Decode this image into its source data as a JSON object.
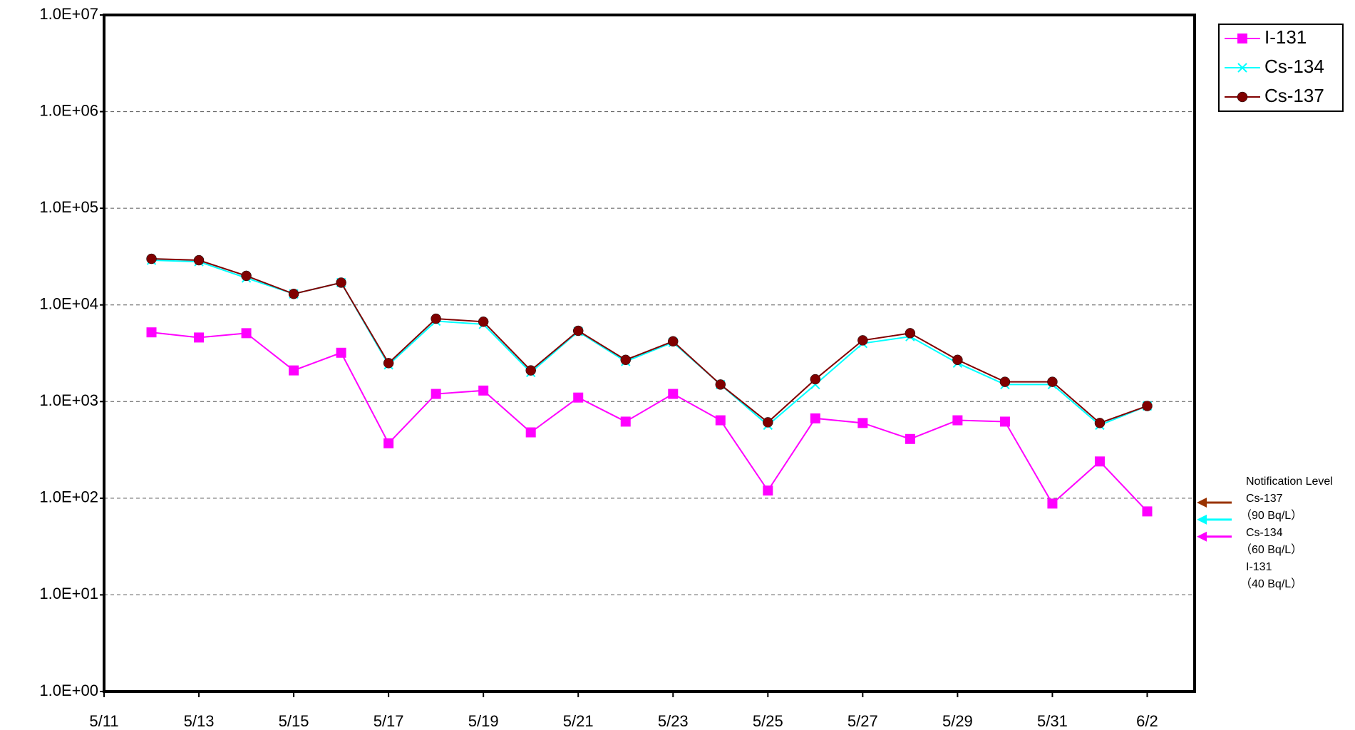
{
  "chart_data": {
    "type": "line",
    "x": [
      "5/12",
      "5/13",
      "5/14",
      "5/15",
      "5/16",
      "5/17",
      "5/18",
      "5/19",
      "5/20",
      "5/21",
      "5/22",
      "5/23",
      "5/24",
      "5/25",
      "5/26",
      "5/27",
      "5/28",
      "5/29",
      "5/30",
      "5/31",
      "6/1",
      "6/2"
    ],
    "series": [
      {
        "name": "I-131",
        "color": "#ff00ff",
        "marker": "square",
        "values": [
          5200,
          4600,
          5100,
          2100,
          3200,
          370,
          1200,
          1300,
          480,
          1100,
          620,
          1200,
          640,
          120,
          670,
          600,
          410,
          640,
          620,
          88,
          240,
          73
        ]
      },
      {
        "name": "Cs-134",
        "color": "#00ffff",
        "marker": "x",
        "values": [
          29000,
          28000,
          19000,
          13000,
          17000,
          2400,
          6800,
          6300,
          2000,
          5300,
          2600,
          4100,
          1500,
          570,
          1500,
          4000,
          4700,
          2500,
          1500,
          1500,
          570,
          900
        ]
      },
      {
        "name": "Cs-137",
        "color": "#800000",
        "marker": "circle",
        "values": [
          30000,
          29000,
          20000,
          13000,
          17000,
          2500,
          7200,
          6700,
          2100,
          5400,
          2700,
          4200,
          1500,
          610,
          1700,
          4300,
          5100,
          2700,
          1600,
          1600,
          600,
          900
        ]
      }
    ],
    "xlim": [
      "5/11",
      "6/3"
    ],
    "xticks": [
      "5/11",
      "5/13",
      "5/15",
      "5/17",
      "5/19",
      "5/21",
      "5/23",
      "5/25",
      "5/27",
      "5/29",
      "5/31",
      "6/2"
    ],
    "ylim": [
      1,
      10000000
    ],
    "yticks": [
      {
        "value": 1,
        "label": "1.0E+00"
      },
      {
        "value": 10,
        "label": "1.0E+01"
      },
      {
        "value": 100,
        "label": "1.0E+02"
      },
      {
        "value": 1000,
        "label": "1.0E+03"
      },
      {
        "value": 10000,
        "label": "1.0E+04"
      },
      {
        "value": 100000,
        "label": "1.0E+05"
      },
      {
        "value": 1000000,
        "label": "1.0E+06"
      },
      {
        "value": 10000000,
        "label": "1.0E+07"
      }
    ],
    "log_scale": true,
    "grid": true,
    "legend": "upper right",
    "notification_title": "Notification Level",
    "notification_levels": [
      {
        "name": "Cs-137",
        "label": "（90  Bq/L）",
        "value": 90,
        "color": "#993300"
      },
      {
        "name": "Cs-134",
        "label": "（60  Bq/L）",
        "value": 60,
        "color": "#00ffff"
      },
      {
        "name": "I-131",
        "label": "（40  Bq/L）",
        "value": 40,
        "color": "#ff00ff"
      }
    ]
  }
}
